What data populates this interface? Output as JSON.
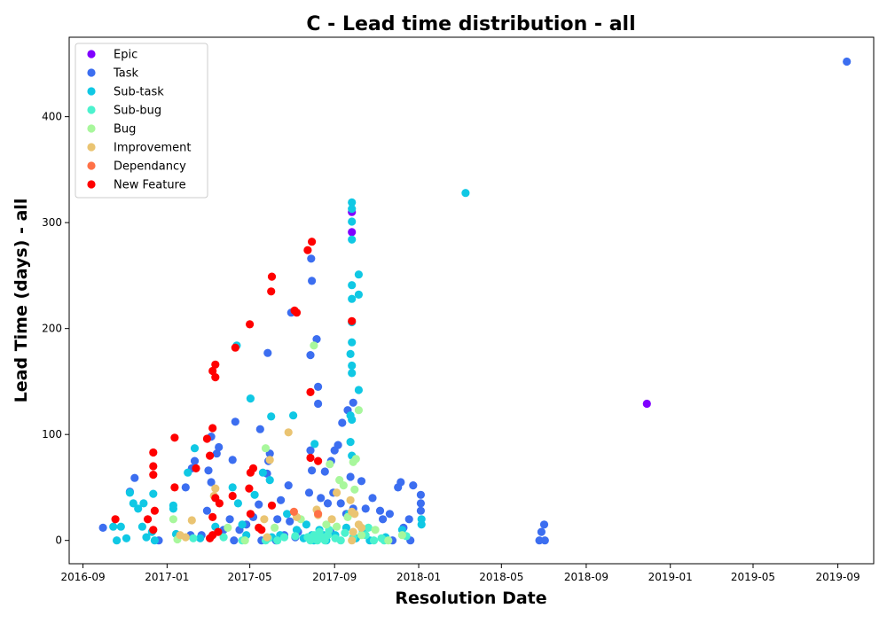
{
  "chart_data": {
    "type": "scatter",
    "title": "C - Lead time distribution - all",
    "xlabel": "Resolution Date",
    "ylabel": "Lead Time (days) - all",
    "x_axis_type": "date",
    "xlim": [
      "2016-08-12",
      "2019-10-23"
    ],
    "ylim": [
      -22,
      475
    ],
    "x_ticks": [
      "2016-09-01",
      "2017-01-01",
      "2017-05-01",
      "2017-09-01",
      "2018-01-01",
      "2018-05-01",
      "2018-09-01",
      "2019-01-01",
      "2019-05-01",
      "2019-09-01"
    ],
    "x_tick_labels": [
      "2016-09",
      "2017-01",
      "2017-05",
      "2017-09",
      "2018-01",
      "2018-05",
      "2018-09",
      "2019-01",
      "2019-05",
      "2019-09"
    ],
    "y_ticks": [
      0,
      100,
      200,
      300,
      400
    ],
    "y_tick_labels": [
      "0",
      "100",
      "200",
      "300",
      "400"
    ],
    "grid": false,
    "legend_position": "top-left",
    "series": [
      {
        "name": "Epic",
        "color": "#8000ff",
        "points": [
          [
            "2017-09-26",
            310
          ],
          [
            "2017-09-26",
            291
          ],
          [
            "2018-11-28",
            129
          ]
        ]
      },
      {
        "name": "Task",
        "color": "#3c6ef0",
        "points": [
          [
            "2019-09-14",
            452
          ],
          [
            "2017-07-29",
            266
          ],
          [
            "2017-07-30",
            245
          ],
          [
            "2017-08-06",
            190
          ],
          [
            "2017-07-28",
            175
          ],
          [
            "2017-05-27",
            177
          ],
          [
            "2017-06-30",
            215
          ],
          [
            "2017-08-08",
            145
          ],
          [
            "2017-08-08",
            129
          ],
          [
            "2017-09-28",
            130
          ],
          [
            "2017-09-20",
            123
          ],
          [
            "2017-09-12",
            111
          ],
          [
            "2017-09-06",
            90
          ],
          [
            "2017-09-01",
            85
          ],
          [
            "2017-08-27",
            75
          ],
          [
            "2017-08-18",
            65
          ],
          [
            "2017-08-12",
            40
          ],
          [
            "2017-08-22",
            35
          ],
          [
            "2017-07-28",
            85
          ],
          [
            "2017-07-30",
            66
          ],
          [
            "2017-07-26",
            45
          ],
          [
            "2017-06-26",
            52
          ],
          [
            "2017-06-15",
            38
          ],
          [
            "2017-06-10",
            20
          ],
          [
            "2017-05-30",
            82
          ],
          [
            "2017-05-28",
            75
          ],
          [
            "2017-05-26",
            63
          ],
          [
            "2017-05-16",
            105
          ],
          [
            "2017-05-14",
            34
          ],
          [
            "2017-04-10",
            112
          ],
          [
            "2017-04-06",
            76
          ],
          [
            "2017-04-02",
            20
          ],
          [
            "2017-03-17",
            88
          ],
          [
            "2017-03-14",
            82
          ],
          [
            "2017-03-06",
            98
          ],
          [
            "2017-03-02",
            66
          ],
          [
            "2017-03-06",
            55
          ],
          [
            "2017-02-10",
            75
          ],
          [
            "2017-02-06",
            68
          ],
          [
            "2017-01-28",
            50
          ],
          [
            "2017-02-20",
            5
          ],
          [
            "2016-11-15",
            59
          ],
          [
            "2016-11-08",
            46
          ],
          [
            "2016-09-30",
            12
          ],
          [
            "2016-12-20",
            0
          ],
          [
            "2017-10-16",
            30
          ],
          [
            "2017-10-10",
            56
          ],
          [
            "2017-10-26",
            40
          ],
          [
            "2017-11-06",
            28
          ],
          [
            "2017-11-10",
            20
          ],
          [
            "2017-11-20",
            25
          ],
          [
            "2017-12-06",
            55
          ],
          [
            "2017-12-02",
            50
          ],
          [
            "2017-12-24",
            52
          ],
          [
            "2018-01-04",
            43
          ],
          [
            "2018-01-04",
            35
          ],
          [
            "2018-01-04",
            28
          ],
          [
            "2017-12-18",
            20
          ],
          [
            "2017-12-10",
            12
          ],
          [
            "2017-11-24",
            0
          ],
          [
            "2017-12-20",
            0
          ],
          [
            "2018-06-25",
            0
          ],
          [
            "2018-06-28",
            8
          ],
          [
            "2018-07-02",
            15
          ],
          [
            "2018-07-03",
            0
          ],
          [
            "2017-09-24",
            60
          ],
          [
            "2017-09-28",
            30
          ],
          [
            "2017-09-18",
            25
          ],
          [
            "2017-06-08",
            0
          ],
          [
            "2017-06-20",
            5
          ],
          [
            "2017-07-10",
            8
          ],
          [
            "2017-07-06",
            3
          ],
          [
            "2017-08-26",
            8
          ],
          [
            "2017-05-06",
            22
          ],
          [
            "2017-04-26",
            15
          ],
          [
            "2017-04-16",
            10
          ],
          [
            "2017-03-24",
            10
          ],
          [
            "2017-02-28",
            28
          ],
          [
            "2017-02-04",
            5
          ],
          [
            "2017-05-18",
            0
          ],
          [
            "2017-04-08",
            0
          ],
          [
            "2017-06-28",
            18
          ],
          [
            "2017-08-30",
            45
          ],
          [
            "2017-09-10",
            35
          ]
        ]
      },
      {
        "name": "Sub-task",
        "color": "#10c8e4",
        "points": [
          [
            "2018-03-10",
            328
          ],
          [
            "2017-09-26",
            319
          ],
          [
            "2017-09-26",
            313
          ],
          [
            "2017-09-26",
            301
          ],
          [
            "2017-09-26",
            284
          ],
          [
            "2017-10-06",
            251
          ],
          [
            "2017-09-26",
            241
          ],
          [
            "2017-10-06",
            232
          ],
          [
            "2017-09-26",
            228
          ],
          [
            "2017-09-26",
            206
          ],
          [
            "2017-09-26",
            187
          ],
          [
            "2017-09-24",
            176
          ],
          [
            "2017-09-26",
            165
          ],
          [
            "2017-09-26",
            158
          ],
          [
            "2017-10-06",
            142
          ],
          [
            "2017-09-24",
            118
          ],
          [
            "2017-09-26",
            114
          ],
          [
            "2017-09-24",
            93
          ],
          [
            "2017-09-26",
            80
          ],
          [
            "2017-04-12",
            184
          ],
          [
            "2017-05-02",
            134
          ],
          [
            "2017-06-01",
            117
          ],
          [
            "2017-07-03",
            118
          ],
          [
            "2017-08-03",
            91
          ],
          [
            "2017-05-30",
            57
          ],
          [
            "2017-05-20",
            64
          ],
          [
            "2017-04-06",
            50
          ],
          [
            "2017-04-14",
            35
          ],
          [
            "2017-02-10",
            87
          ],
          [
            "2017-01-31",
            64
          ],
          [
            "2016-12-12",
            44
          ],
          [
            "2016-11-08",
            45
          ],
          [
            "2016-11-13",
            35
          ],
          [
            "2016-11-28",
            35
          ],
          [
            "2016-11-20",
            30
          ],
          [
            "2016-10-26",
            13
          ],
          [
            "2016-10-15",
            13
          ],
          [
            "2016-11-03",
            2
          ],
          [
            "2016-10-20",
            0
          ],
          [
            "2016-12-02",
            3
          ],
          [
            "2016-12-14",
            0
          ],
          [
            "2017-01-10",
            30
          ],
          [
            "2017-01-10",
            33
          ],
          [
            "2017-01-14",
            6
          ],
          [
            "2017-02-18",
            2
          ],
          [
            "2017-03-12",
            13
          ],
          [
            "2017-04-26",
            5
          ],
          [
            "2017-05-08",
            43
          ],
          [
            "2017-06-02",
            3
          ],
          [
            "2017-06-14",
            5
          ],
          [
            "2017-07-08",
            10
          ],
          [
            "2017-07-22",
            15
          ],
          [
            "2017-07-30",
            5
          ],
          [
            "2017-08-02",
            0
          ],
          [
            "2017-08-10",
            10
          ],
          [
            "2017-08-16",
            5
          ],
          [
            "2017-08-20",
            0
          ],
          [
            "2017-09-02",
            5
          ],
          [
            "2017-09-18",
            12
          ],
          [
            "2017-10-02",
            2
          ],
          [
            "2017-10-12",
            8
          ],
          [
            "2017-10-22",
            0
          ],
          [
            "2017-11-14",
            3
          ],
          [
            "2017-12-08",
            10
          ],
          [
            "2018-01-05",
            20
          ],
          [
            "2018-01-05",
            15
          ],
          [
            "2016-11-26",
            13
          ],
          [
            "2016-12-10",
            8
          ],
          [
            "2017-04-20",
            15
          ],
          [
            "2017-06-24",
            25
          ],
          [
            "2017-07-18",
            2
          ],
          [
            "2017-09-22",
            25
          ]
        ]
      },
      {
        "name": "Sub-bug",
        "color": "#4cf2ce",
        "points": [
          [
            "2017-07-24",
            3
          ],
          [
            "2017-07-28",
            0
          ],
          [
            "2017-08-02",
            5
          ],
          [
            "2017-08-04",
            2
          ],
          [
            "2017-08-07",
            0
          ],
          [
            "2017-08-10",
            8
          ],
          [
            "2017-08-14",
            3
          ],
          [
            "2017-08-18",
            0
          ],
          [
            "2017-08-22",
            5
          ],
          [
            "2017-09-02",
            2
          ],
          [
            "2017-09-10",
            0
          ],
          [
            "2017-09-28",
            3
          ],
          [
            "2017-10-16",
            5
          ],
          [
            "2017-10-28",
            0
          ],
          [
            "2017-11-08",
            2
          ],
          [
            "2017-06-10",
            0
          ],
          [
            "2017-06-20",
            3
          ],
          [
            "2017-05-24",
            0
          ],
          [
            "2017-05-28",
            2
          ],
          [
            "2017-04-20",
            0
          ],
          [
            "2017-03-24",
            3
          ],
          [
            "2017-02-08",
            2
          ],
          [
            "2017-07-06",
            4
          ],
          [
            "2017-08-24",
            10
          ],
          [
            "2017-09-16",
            7
          ],
          [
            "2017-10-20",
            12
          ],
          [
            "2017-11-12",
            0
          ],
          [
            "2017-12-14",
            4
          ]
        ]
      },
      {
        "name": "Bug",
        "color": "#a8f79c",
        "points": [
          [
            "2017-08-02",
            184
          ],
          [
            "2017-10-06",
            123
          ],
          [
            "2017-10-02",
            77
          ],
          [
            "2017-09-28",
            74
          ],
          [
            "2017-09-30",
            48
          ],
          [
            "2017-09-08",
            57
          ],
          [
            "2017-08-25",
            72
          ],
          [
            "2017-09-14",
            52
          ],
          [
            "2017-05-24",
            87
          ],
          [
            "2017-01-10",
            20
          ],
          [
            "2017-01-16",
            1
          ],
          [
            "2017-03-30",
            12
          ],
          [
            "2017-04-24",
            0
          ],
          [
            "2017-06-06",
            12
          ],
          [
            "2017-07-14",
            20
          ],
          [
            "2017-08-20",
            15
          ],
          [
            "2017-09-04",
            13
          ],
          [
            "2017-09-20",
            22
          ],
          [
            "2017-10-10",
            5
          ],
          [
            "2017-10-30",
            10
          ],
          [
            "2017-11-18",
            0
          ],
          [
            "2017-12-08",
            5
          ]
        ]
      },
      {
        "name": "Improvement",
        "color": "#eac472",
        "points": [
          [
            "2017-06-26",
            102
          ],
          [
            "2017-05-30",
            76
          ],
          [
            "2017-03-12",
            49
          ],
          [
            "2017-03-10",
            42
          ],
          [
            "2017-02-06",
            19
          ],
          [
            "2017-01-20",
            5
          ],
          [
            "2017-01-28",
            3
          ],
          [
            "2017-08-06",
            29
          ],
          [
            "2017-08-08",
            24
          ],
          [
            "2017-09-04",
            45
          ],
          [
            "2017-09-24",
            38
          ],
          [
            "2017-09-26",
            27
          ],
          [
            "2017-09-30",
            25
          ],
          [
            "2017-10-06",
            15
          ],
          [
            "2017-10-10",
            12
          ],
          [
            "2017-09-28",
            8
          ],
          [
            "2017-09-26",
            0
          ],
          [
            "2017-05-22",
            20
          ],
          [
            "2017-05-26",
            3
          ],
          [
            "2017-08-28",
            20
          ],
          [
            "2017-07-08",
            22
          ]
        ]
      },
      {
        "name": "Dependancy",
        "color": "#ff7147",
        "points": [
          [
            "2017-07-04",
            27
          ],
          [
            "2017-08-08",
            25
          ]
        ]
      },
      {
        "name": "New Feature",
        "color": "#ff0000",
        "points": [
          [
            "2017-07-30",
            282
          ],
          [
            "2017-07-24",
            274
          ],
          [
            "2017-06-02",
            249
          ],
          [
            "2017-06-01",
            235
          ],
          [
            "2017-07-05",
            217
          ],
          [
            "2017-07-08",
            215
          ],
          [
            "2017-09-26",
            207
          ],
          [
            "2017-05-01",
            204
          ],
          [
            "2017-04-10",
            182
          ],
          [
            "2017-03-12",
            166
          ],
          [
            "2017-03-08",
            160
          ],
          [
            "2017-03-12",
            154
          ],
          [
            "2017-07-28",
            140
          ],
          [
            "2017-03-08",
            106
          ],
          [
            "2017-01-12",
            97
          ],
          [
            "2017-02-28",
            96
          ],
          [
            "2016-12-12",
            83
          ],
          [
            "2017-03-04",
            80
          ],
          [
            "2017-07-28",
            78
          ],
          [
            "2017-08-08",
            75
          ],
          [
            "2016-12-12",
            70
          ],
          [
            "2017-02-12",
            68
          ],
          [
            "2017-05-06",
            68
          ],
          [
            "2017-05-02",
            64
          ],
          [
            "2016-12-12",
            62
          ],
          [
            "2017-01-12",
            50
          ],
          [
            "2017-04-30",
            49
          ],
          [
            "2017-04-06",
            42
          ],
          [
            "2017-03-12",
            40
          ],
          [
            "2017-03-18",
            35
          ],
          [
            "2016-12-14",
            28
          ],
          [
            "2017-03-08",
            22
          ],
          [
            "2017-05-02",
            25
          ],
          [
            "2016-10-18",
            20
          ],
          [
            "2016-12-04",
            20
          ],
          [
            "2016-12-12",
            10
          ],
          [
            "2017-03-08",
            5
          ],
          [
            "2017-03-16",
            8
          ],
          [
            "2017-05-14",
            12
          ],
          [
            "2017-05-18",
            10
          ],
          [
            "2017-06-02",
            33
          ],
          [
            "2017-03-04",
            2
          ]
        ]
      }
    ]
  }
}
